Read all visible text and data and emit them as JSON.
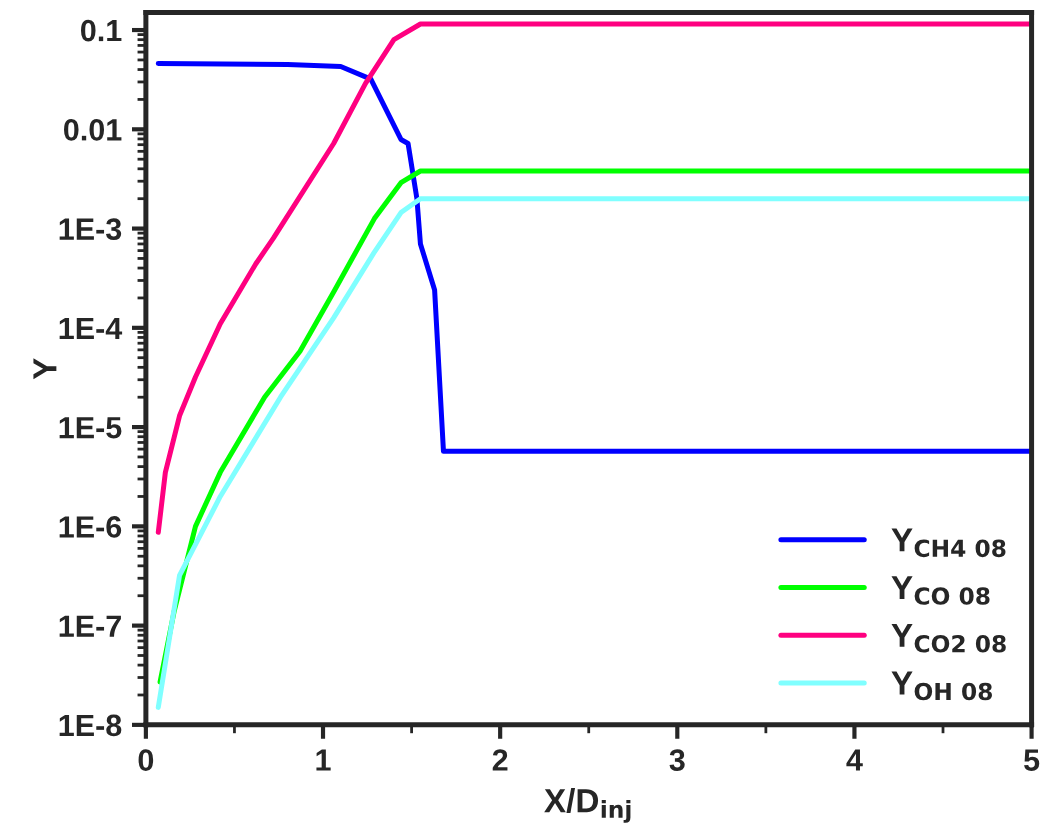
{
  "chart_data": {
    "type": "line",
    "xlabel": "X/D$_{inj}$",
    "ylabel": "Y",
    "log": "y",
    "grid": false,
    "legend": "bottom right",
    "marker": "none",
    "line_style": "solid",
    "xlim": [
      0,
      5
    ],
    "xticks": [
      0,
      1,
      2,
      3,
      4,
      5
    ],
    "ylim": [
      1e-08,
      0.15
    ],
    "yticks": [
      {
        "value": 1e-08,
        "label": "1E-8"
      },
      {
        "value": 1e-07,
        "label": "1E-7"
      },
      {
        "value": 1e-06,
        "label": "1E-6"
      },
      {
        "value": 1e-05,
        "label": "1E-5"
      },
      {
        "value": 0.0001,
        "label": "1E-4"
      },
      {
        "value": 0.001,
        "label": "1E-3"
      },
      {
        "value": 0.01,
        "label": "0.01"
      },
      {
        "value": 0.1,
        "label": "0.1"
      }
    ],
    "series": [
      {
        "name": "Y$_{CH4 08}$",
        "color": "#0000ff",
        "x": [
          0.07,
          0.8,
          1.1,
          1.27,
          1.44,
          1.48,
          1.53,
          1.55,
          1.63,
          1.68,
          5
        ],
        "values": [
          0.046,
          0.045,
          0.043,
          0.032,
          0.0079,
          0.0072,
          0.002,
          0.0007,
          0.00024,
          5.7e-06,
          5.7e-06
        ]
      },
      {
        "name": "Y$_{CO 08}$",
        "color": "#00ff00",
        "x": [
          0.08,
          0.16,
          0.28,
          0.42,
          0.67,
          0.87,
          1.06,
          1.29,
          1.44,
          1.55,
          5
        ],
        "values": [
          2.7e-08,
          1.4e-07,
          1e-06,
          3.5e-06,
          2e-05,
          5.8e-05,
          0.00023,
          0.00126,
          0.0029,
          0.0038,
          0.0038
        ]
      },
      {
        "name": "Y$_{CO2 08}$",
        "color": "#ff0080",
        "x": [
          0.07,
          0.11,
          0.19,
          0.28,
          0.42,
          0.62,
          0.72,
          1.06,
          1.24,
          1.4,
          1.55,
          5
        ],
        "values": [
          8.7e-07,
          3.5e-06,
          1.3e-05,
          3.2e-05,
          0.00011,
          0.00044,
          0.0008,
          0.0072,
          0.029,
          0.08,
          0.115,
          0.115
        ]
      },
      {
        "name": "Y$_{OH 08}$",
        "color": "#80ffff",
        "x": [
          0.07,
          0.19,
          0.42,
          0.76,
          1.06,
          1.29,
          1.44,
          1.55,
          5
        ],
        "values": [
          1.5e-08,
          3.2e-07,
          2e-06,
          2e-05,
          0.000126,
          0.00058,
          0.00145,
          0.002,
          0.002
        ]
      }
    ]
  }
}
